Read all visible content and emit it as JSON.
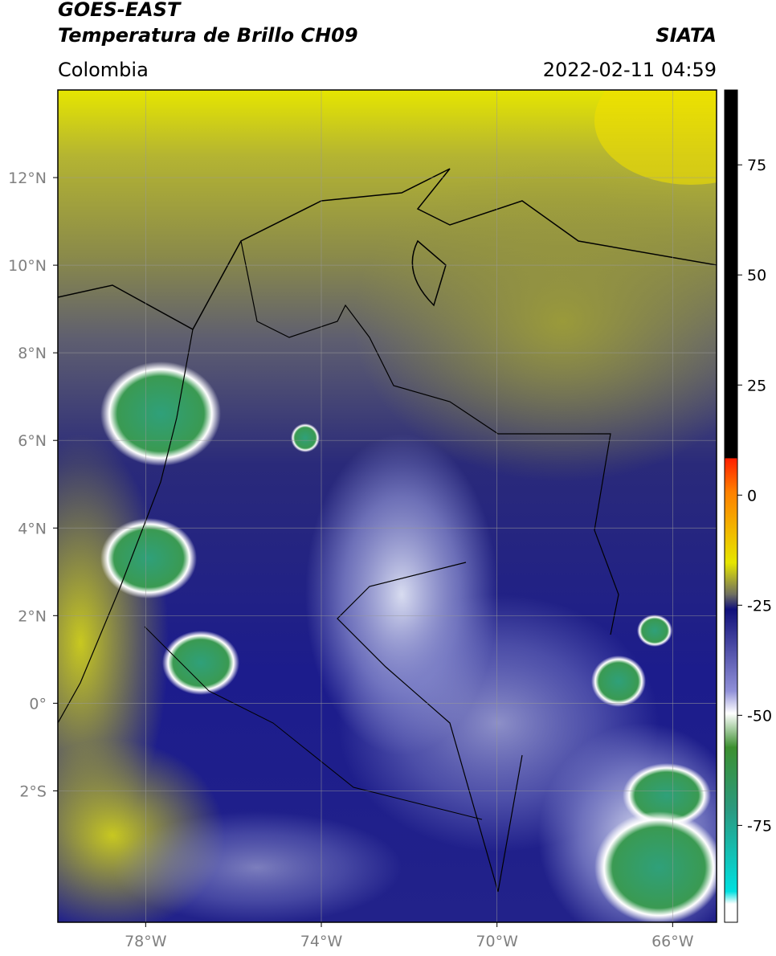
{
  "header": {
    "title": "GOES-EAST",
    "subtitle": "Temperatura de Brillo CH09",
    "source": "SIATA",
    "region": "Colombia",
    "datetime": "2022-02-11 04:59"
  },
  "map": {
    "lonlim": [
      -80,
      -65
    ],
    "latlim": [
      -5,
      14
    ],
    "lonticks": [
      {
        "value": -78,
        "label": "78°W"
      },
      {
        "value": -74,
        "label": "74°W"
      },
      {
        "value": -70,
        "label": "70°W"
      },
      {
        "value": -66,
        "label": "66°W"
      }
    ],
    "latticks": [
      {
        "value": 12,
        "label": "12°N"
      },
      {
        "value": 10,
        "label": "10°N"
      },
      {
        "value": 8,
        "label": "8°N"
      },
      {
        "value": 6,
        "label": "6°N"
      },
      {
        "value": 4,
        "label": "4°N"
      },
      {
        "value": 2,
        "label": "2°N"
      },
      {
        "value": 0,
        "label": "0°"
      },
      {
        "value": -2,
        "label": "2°S"
      }
    ],
    "grid": true
  },
  "colorbar": {
    "lim": [
      -97,
      92
    ],
    "ticks": [
      75,
      50,
      25,
      0,
      -25,
      -50,
      -75
    ]
  }
}
